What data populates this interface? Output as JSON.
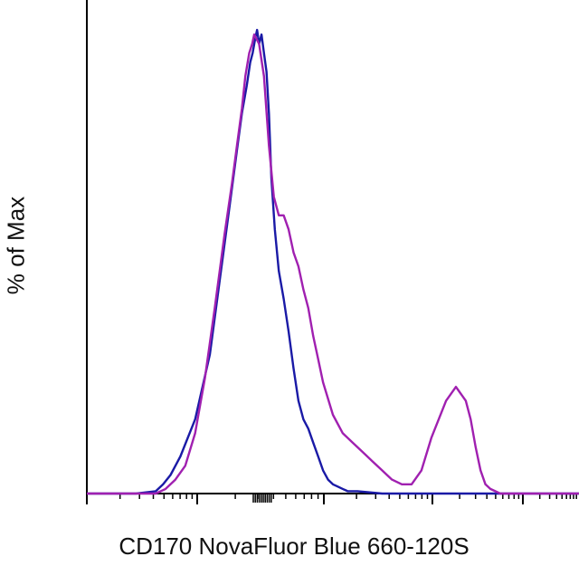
{
  "chart_data": {
    "type": "line",
    "xlabel": "CD170 NovaFluor Blue 660-120S",
    "ylabel": "% of Max",
    "xlim": [
      0,
      1
    ],
    "ylim": [
      0,
      100
    ],
    "grid": false,
    "series": [
      {
        "color": "#1a1aa6",
        "x": [
          0.0,
          0.05,
          0.1,
          0.14,
          0.155,
          0.17,
          0.19,
          0.22,
          0.25,
          0.27,
          0.29,
          0.305,
          0.315,
          0.325,
          0.332,
          0.337,
          0.342,
          0.346,
          0.35,
          0.355,
          0.36,
          0.365,
          0.37,
          0.375,
          0.382,
          0.39,
          0.4,
          0.41,
          0.42,
          0.43,
          0.44,
          0.45,
          0.46,
          0.47,
          0.48,
          0.49,
          0.5,
          0.51,
          0.52,
          0.53,
          0.55,
          0.57,
          0.6,
          0.65,
          1.0
        ],
        "y": [
          0,
          0,
          0,
          0.5,
          2,
          4,
          8,
          16,
          30,
          46,
          62,
          74,
          82,
          88,
          93,
          95,
          98,
          100,
          97,
          99,
          95,
          91,
          82,
          68,
          57,
          48,
          42,
          35,
          27,
          20,
          16,
          14,
          11,
          8,
          5,
          3,
          2,
          1.5,
          1,
          0.5,
          0.5,
          0.3,
          0,
          0,
          0
        ]
      },
      {
        "color": "#a020b0",
        "x": [
          0.0,
          0.05,
          0.1,
          0.14,
          0.16,
          0.18,
          0.2,
          0.22,
          0.24,
          0.26,
          0.28,
          0.295,
          0.305,
          0.315,
          0.322,
          0.33,
          0.336,
          0.34,
          0.35,
          0.36,
          0.37,
          0.38,
          0.39,
          0.4,
          0.41,
          0.42,
          0.43,
          0.44,
          0.45,
          0.46,
          0.47,
          0.48,
          0.5,
          0.52,
          0.54,
          0.56,
          0.58,
          0.6,
          0.61,
          0.62,
          0.64,
          0.66,
          0.68,
          0.7,
          0.73,
          0.75,
          0.77,
          0.78,
          0.79,
          0.8,
          0.81,
          0.82,
          0.83,
          0.84,
          0.85,
          0.86,
          0.87,
          0.88,
          0.9,
          1.0
        ],
        "y": [
          0,
          0,
          0,
          0,
          1,
          3,
          6,
          13,
          25,
          40,
          56,
          67,
          75,
          83,
          90,
          95,
          97,
          99,
          97,
          90,
          75,
          64,
          60,
          60,
          57,
          52,
          49,
          44,
          40,
          34,
          29,
          24,
          17,
          13,
          11,
          9,
          7,
          5,
          4,
          3,
          2,
          2,
          5,
          12,
          20,
          23,
          20,
          16,
          10,
          5,
          2,
          1,
          0.5,
          0,
          0,
          0,
          0,
          0,
          0,
          0
        ]
      }
    ]
  }
}
